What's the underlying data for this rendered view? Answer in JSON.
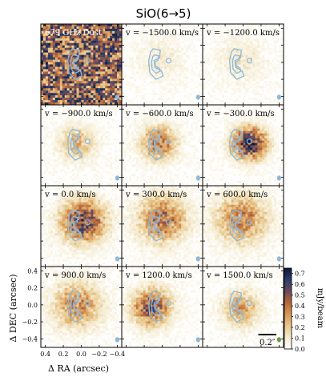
{
  "chart_data": {
    "type": "heatmap",
    "title": "SiO(6→5)",
    "xlabel": "Δ RA (arcsec)",
    "ylabel": "Δ DEC (arcsec)",
    "colorbar_label": "mJy/beam",
    "colorbar_ticks": [
      0.0,
      0.1,
      0.2,
      0.3,
      0.4,
      0.5,
      0.6,
      0.7
    ],
    "colorbar_range": [
      0.0,
      0.75
    ],
    "colormap": [
      "#ffffff",
      "#f5ecd2",
      "#e9c98e",
      "#d99a58",
      "#b8683a",
      "#6e4a5a",
      "#2c3d6b",
      "#0e1a3a"
    ],
    "contour_color": "#8fb8d8",
    "xlim": [
      0.45,
      -0.45
    ],
    "ylim": [
      -0.5,
      0.45
    ],
    "x_ticks": [
      "0.4",
      "0.2",
      "0.0",
      "−0.2",
      "−0.4"
    ],
    "y_ticks": [
      "0.4",
      "0.2",
      "0.0",
      "−0.2",
      "−0.4"
    ],
    "scalebar_label": "0.2″",
    "panels": [
      {
        "label": "679 GHz Dust",
        "kind": "dust"
      },
      {
        "label": "v = −1500.0 km/s",
        "velocity": -1500.0,
        "peak": 0.1,
        "blob": [
          0.02,
          0.02
        ],
        "spread": 0.18
      },
      {
        "label": "v = −1200.0 km/s",
        "velocity": -1200.0,
        "peak": 0.12,
        "blob": [
          0.02,
          0.02
        ],
        "spread": 0.18
      },
      {
        "label": "v = −900.0 km/s",
        "velocity": -900.0,
        "peak": 0.28,
        "blob": [
          0.05,
          0.0
        ],
        "spread": 0.14
      },
      {
        "label": "v = −600.0 km/s",
        "velocity": -600.0,
        "peak": 0.42,
        "blob": [
          0.04,
          0.0
        ],
        "spread": 0.14
      },
      {
        "label": "v = −300.0 km/s",
        "velocity": -300.0,
        "peak": 0.72,
        "blob": [
          -0.07,
          0.0
        ],
        "spread": 0.13
      },
      {
        "label": "v = 0.0 km/s",
        "velocity": 0.0,
        "peak": 0.62,
        "blob": [
          -0.02,
          0.03
        ],
        "spread": 0.17
      },
      {
        "label": "v = 300.0 km/s",
        "velocity": 300.0,
        "peak": 0.45,
        "blob": [
          0.0,
          0.05
        ],
        "spread": 0.19
      },
      {
        "label": "v = 600.0 km/s",
        "velocity": 600.0,
        "peak": 0.4,
        "blob": [
          0.02,
          0.06
        ],
        "spread": 0.2
      },
      {
        "label": "v = 900.0 km/s",
        "velocity": 900.0,
        "peak": 0.38,
        "blob": [
          0.05,
          0.0
        ],
        "spread": 0.19
      },
      {
        "label": "v = 1200.0 km/s",
        "velocity": 1200.0,
        "peak": 0.55,
        "blob": [
          0.12,
          -0.03
        ],
        "spread": 0.15
      },
      {
        "label": "v = 1500.0 km/s",
        "velocity": 1500.0,
        "peak": 0.35,
        "blob": [
          0.02,
          -0.05
        ],
        "spread": 0.14
      }
    ]
  }
}
